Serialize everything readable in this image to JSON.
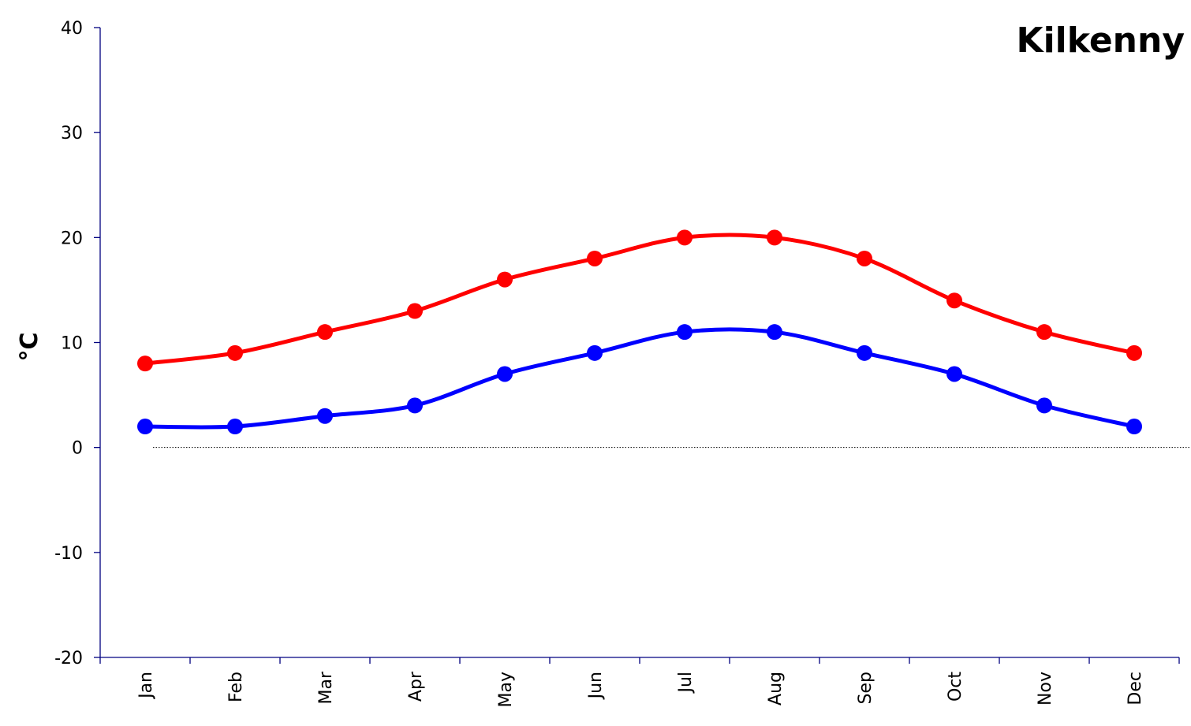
{
  "chart_data": {
    "type": "line",
    "title": "Kilkenny",
    "xlabel": "",
    "ylabel": "°C",
    "categories": [
      "Jan",
      "Feb",
      "Mar",
      "Apr",
      "May",
      "Jun",
      "Jul",
      "Aug",
      "Sep",
      "Oct",
      "Nov",
      "Dec"
    ],
    "ylim": [
      -20,
      40
    ],
    "yticks": [
      "40",
      "30",
      "20",
      "10",
      "0",
      "-10",
      "-20"
    ],
    "series": [
      {
        "color": "#ff0000",
        "values": [
          8,
          9,
          11,
          13,
          16,
          18,
          20,
          20,
          18,
          14,
          11,
          9
        ]
      },
      {
        "color": "#0000ff",
        "values": [
          2,
          2,
          3,
          4,
          7,
          9,
          11,
          11,
          9,
          7,
          4,
          2
        ]
      }
    ],
    "zero_line": true,
    "grid": false,
    "legend": "none"
  }
}
